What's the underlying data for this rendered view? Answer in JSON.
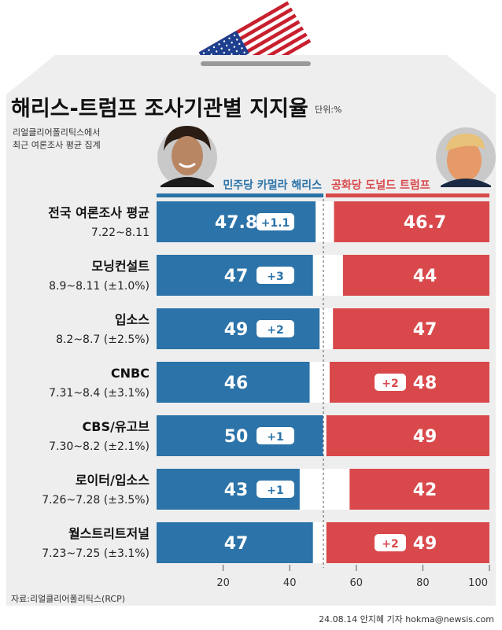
{
  "title": "해리스-트럼프 조사기관별 지지율",
  "unit": "단위:%",
  "subtitle_lines": [
    "리얼클리어폴리틱스에서",
    "최근 여론조사 평균 집계"
  ],
  "legend": {
    "harris": "민주당 카멀라 해리스",
    "trump": "공화당 도널드 트럼프"
  },
  "source": "자료:리얼클리어폴리틱스(RCP)",
  "credit": "24.08.14 안지혜 기자 hokma@newsis.com",
  "colors": {
    "harris": "#2b73a8",
    "trump": "#d9494b",
    "background": "#eeeeee",
    "box_top": "#d9d9d9",
    "label_dark": "#111111"
  },
  "chart_data": {
    "type": "bar",
    "orientation": "horizontal-diverging",
    "xlim": [
      0,
      100
    ],
    "x_ticks": [
      20,
      40,
      60,
      80,
      100
    ],
    "midline": 50,
    "categories": [
      {
        "name": "전국 여론조사 평균",
        "detail": "7.22~8.11"
      },
      {
        "name": "모닝컨설트",
        "detail": "8.9~8.11 (±1.0%)"
      },
      {
        "name": "입소스",
        "detail": "8.2~8.7 (±2.5%)"
      },
      {
        "name": "CNBC",
        "detail": "7.31~8.4 (±3.1%)"
      },
      {
        "name": "CBS/유고브",
        "detail": "7.30~8.2 (±2.1%)"
      },
      {
        "name": "로이터/입소스",
        "detail": "7.26~7.28 (±3.5%)"
      },
      {
        "name": "월스트리트저널",
        "detail": "7.23~7.25 (±3.1%)"
      }
    ],
    "series": [
      {
        "name": "민주당 카멀라 해리스",
        "values": [
          47.8,
          47,
          49,
          46,
          50,
          43,
          47
        ],
        "labels": [
          "47.8",
          "47",
          "49",
          "46",
          "50",
          "43",
          "47"
        ],
        "leads": [
          "+1.1",
          "+3",
          "+2",
          "",
          "+1",
          "+1",
          ""
        ]
      },
      {
        "name": "공화당 도널드 트럼프",
        "values": [
          46.7,
          44,
          47,
          48,
          49,
          42,
          49
        ],
        "labels": [
          "46.7",
          "44",
          "47",
          "48",
          "49",
          "42",
          "49"
        ],
        "leads": [
          "",
          "",
          "",
          "+2",
          "",
          "",
          "+2"
        ]
      }
    ]
  }
}
